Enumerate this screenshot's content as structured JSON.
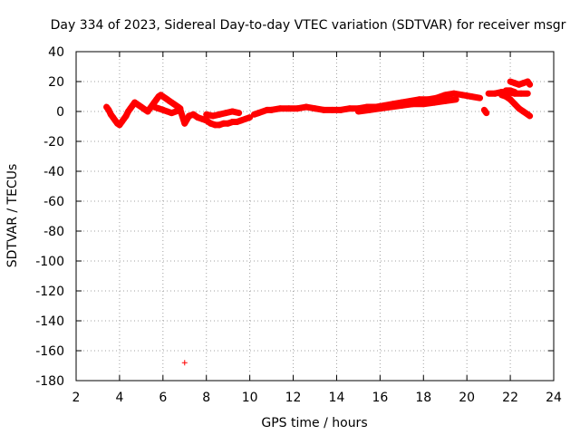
{
  "chart_data": {
    "type": "scatter",
    "title": "Day 334 of 2023, Sidereal Day-to-day VTEC variation (SDTVAR) for receiver msgr",
    "xlabel": "GPS time / hours",
    "ylabel": "SDTVAR / TECUs",
    "xlim": [
      2,
      24
    ],
    "ylim": [
      -180,
      40
    ],
    "xticks": [
      2,
      4,
      6,
      8,
      10,
      12,
      14,
      16,
      18,
      20,
      22,
      24
    ],
    "yticks": [
      40,
      20,
      0,
      -20,
      -40,
      -60,
      -80,
      -100,
      -120,
      -140,
      -160,
      -180
    ],
    "grid": true,
    "marker": "+",
    "color": "#ff0000",
    "series": [
      {
        "name": "SDTVAR",
        "points": [
          [
            3.4,
            3
          ],
          [
            3.5,
            1
          ],
          [
            3.6,
            -2
          ],
          [
            3.7,
            -4
          ],
          [
            3.8,
            -6
          ],
          [
            3.9,
            -8
          ],
          [
            4.0,
            -9
          ],
          [
            4.1,
            -7
          ],
          [
            4.2,
            -5
          ],
          [
            4.3,
            -3
          ],
          [
            4.4,
            0
          ],
          [
            4.5,
            2
          ],
          [
            4.6,
            4
          ],
          [
            4.7,
            6
          ],
          [
            4.8,
            5
          ],
          [
            4.9,
            4
          ],
          [
            5.0,
            3
          ],
          [
            5.1,
            2
          ],
          [
            5.2,
            1
          ],
          [
            5.3,
            0
          ],
          [
            5.4,
            2
          ],
          [
            5.5,
            4
          ],
          [
            5.6,
            6
          ],
          [
            5.7,
            8
          ],
          [
            5.8,
            10
          ],
          [
            5.9,
            11
          ],
          [
            6.0,
            10
          ],
          [
            6.1,
            9
          ],
          [
            6.2,
            8
          ],
          [
            6.3,
            7
          ],
          [
            6.4,
            6
          ],
          [
            6.5,
            5
          ],
          [
            6.6,
            4
          ],
          [
            6.7,
            3
          ],
          [
            6.8,
            2
          ],
          [
            5.6,
            3
          ],
          [
            5.8,
            2
          ],
          [
            6.0,
            1
          ],
          [
            6.2,
            0
          ],
          [
            6.4,
            -1
          ],
          [
            6.6,
            0
          ],
          [
            6.8,
            1
          ],
          [
            7.0,
            -8
          ],
          [
            7.2,
            -3
          ],
          [
            7.4,
            -2
          ],
          [
            7.6,
            -4
          ],
          [
            7.8,
            -5
          ],
          [
            8.0,
            -6
          ],
          [
            8.2,
            -8
          ],
          [
            8.4,
            -9
          ],
          [
            8.6,
            -9
          ],
          [
            8.8,
            -8
          ],
          [
            9.0,
            -8
          ],
          [
            9.2,
            -7
          ],
          [
            9.4,
            -7
          ],
          [
            9.6,
            -6
          ],
          [
            9.8,
            -5
          ],
          [
            10.0,
            -4
          ],
          [
            8.0,
            -2
          ],
          [
            8.3,
            -3
          ],
          [
            8.6,
            -2
          ],
          [
            8.9,
            -1
          ],
          [
            9.2,
            0
          ],
          [
            9.5,
            -1
          ],
          [
            10.2,
            -2
          ],
          [
            10.4,
            -1
          ],
          [
            10.6,
            0
          ],
          [
            10.8,
            1
          ],
          [
            11.0,
            1
          ],
          [
            11.4,
            2
          ],
          [
            11.8,
            2
          ],
          [
            12.2,
            2
          ],
          [
            12.6,
            3
          ],
          [
            13.0,
            2
          ],
          [
            13.4,
            1
          ],
          [
            13.8,
            1
          ],
          [
            14.2,
            1
          ],
          [
            14.6,
            2
          ],
          [
            15.0,
            2
          ],
          [
            15.4,
            3
          ],
          [
            15.8,
            3
          ],
          [
            16.2,
            4
          ],
          [
            16.6,
            5
          ],
          [
            17.0,
            6
          ],
          [
            17.4,
            7
          ],
          [
            17.8,
            8
          ],
          [
            18.2,
            8
          ],
          [
            18.6,
            9
          ],
          [
            19.0,
            11
          ],
          [
            19.4,
            12
          ],
          [
            19.8,
            11
          ],
          [
            20.2,
            10
          ],
          [
            20.6,
            9
          ],
          [
            15.0,
            0
          ],
          [
            15.5,
            1
          ],
          [
            16.0,
            2
          ],
          [
            16.5,
            3
          ],
          [
            17.0,
            4
          ],
          [
            17.5,
            5
          ],
          [
            18.0,
            5
          ],
          [
            18.5,
            6
          ],
          [
            19.0,
            7
          ],
          [
            19.5,
            8
          ],
          [
            20.8,
            1
          ],
          [
            20.9,
            -1
          ],
          [
            21.0,
            12
          ],
          [
            21.3,
            12
          ],
          [
            21.6,
            13
          ],
          [
            21.9,
            13
          ],
          [
            22.2,
            12
          ],
          [
            22.5,
            12
          ],
          [
            22.8,
            12
          ],
          [
            21.6,
            11
          ],
          [
            21.8,
            10
          ],
          [
            22.0,
            8
          ],
          [
            22.2,
            5
          ],
          [
            22.4,
            2
          ],
          [
            22.6,
            0
          ],
          [
            22.8,
            -2
          ],
          [
            22.9,
            -3
          ],
          [
            22.0,
            20
          ],
          [
            22.2,
            19
          ],
          [
            22.4,
            18
          ],
          [
            22.6,
            19
          ],
          [
            22.8,
            20
          ],
          [
            22.9,
            18
          ],
          [
            21.8,
            14
          ],
          [
            22.0,
            14
          ],
          [
            22.2,
            13
          ],
          [
            7.0,
            -168
          ]
        ]
      }
    ]
  }
}
